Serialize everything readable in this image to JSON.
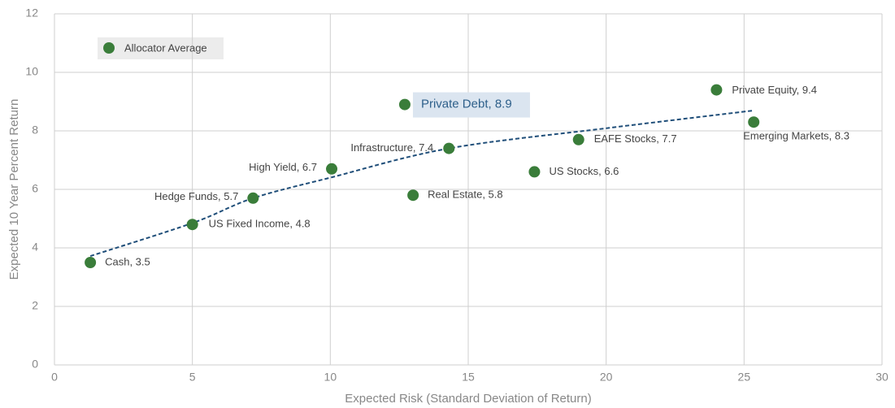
{
  "chart_data": {
    "type": "scatter",
    "xlabel": "Expected Risk (Standard Deviation of Return)",
    "ylabel": "Expected 10 Year Percent Return",
    "xlim": [
      0,
      30
    ],
    "xticks": [
      0,
      5,
      10,
      15,
      20,
      25,
      30
    ],
    "ylim": [
      0,
      12
    ],
    "yticks": [
      0,
      2,
      4,
      6,
      8,
      10,
      12
    ],
    "grid": true,
    "legend": "top-left",
    "series": [
      {
        "name": "Allocator Average",
        "color": "#3a7d3a",
        "x": [
          1.3,
          5.0,
          7.2,
          10.05,
          14.3,
          13.0,
          12.7,
          17.4,
          19.0,
          24.0,
          25.35
        ],
        "values": [
          3.5,
          4.8,
          5.7,
          6.7,
          7.4,
          5.8,
          8.9,
          6.6,
          7.7,
          9.4,
          8.3
        ],
        "labels": [
          "Cash, 3.5",
          "US Fixed Income, 4.8",
          "Hedge Funds, 5.7",
          "High Yield, 6.7",
          "Infrastructure, 7.4",
          "Real Estate, 5.8",
          "Private Debt, 8.9",
          "US Stocks, 6.6",
          "EAFE Stocks, 7.7",
          "Private Equity, 9.4",
          "Emerging Markets, 8.3"
        ],
        "highlight": 6
      }
    ],
    "trendline": {
      "color": "#1f4e79",
      "x": [
        1.3,
        5.0,
        7.2,
        10.0,
        14.3,
        20.1,
        25.3
      ],
      "values": [
        3.72,
        4.85,
        5.7,
        6.4,
        7.4,
        8.1,
        8.69
      ]
    }
  }
}
